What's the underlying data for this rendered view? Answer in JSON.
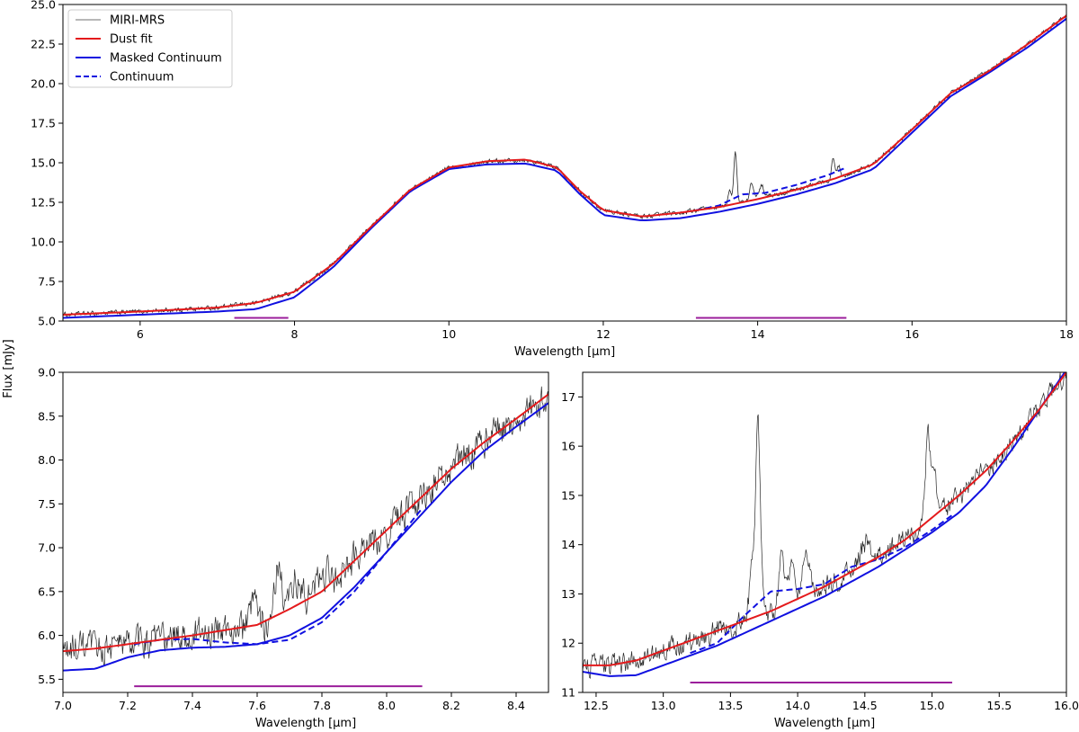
{
  "figure": {
    "ylabel": "Flux [mJy]",
    "legend": {
      "location": "top-left",
      "entries": [
        {
          "label": "MIRI-MRS",
          "color": "#a0a0a0",
          "style": "solid"
        },
        {
          "label": "Dust fit",
          "color": "#e41a1c",
          "style": "solid"
        },
        {
          "label": "Masked Continuum",
          "color": "#1010e0",
          "style": "solid"
        },
        {
          "label": "Continuum",
          "color": "#1010e0",
          "style": "dashed"
        }
      ]
    }
  },
  "colors": {
    "data": "#000000",
    "dust_fit": "#e41a1c",
    "masked_continuum": "#1010e0",
    "continuum": "#1010e0",
    "mask_bar": "#9b1e9b"
  },
  "chart_data": [
    {
      "id": "top",
      "type": "line",
      "xlabel": "Wavelength [µm]",
      "ylabel": "",
      "xlim": [
        5,
        18
      ],
      "ylim": [
        5.0,
        25.0
      ],
      "xticks": [
        6,
        8,
        10,
        12,
        14,
        16,
        18
      ],
      "xtick_labels": [
        "6",
        "8",
        "10",
        "12",
        "14",
        "16",
        "18"
      ],
      "yticks": [
        5.0,
        7.5,
        10.0,
        12.5,
        15.0,
        17.5,
        20.0,
        22.5,
        25.0
      ],
      "ytick_labels": [
        "5.0",
        "7.5",
        "10.0",
        "12.5",
        "15.0",
        "17.5",
        "20.0",
        "22.5",
        "25.0"
      ],
      "mask_ranges": [
        [
          7.22,
          7.92
        ],
        [
          13.2,
          15.15
        ]
      ],
      "mask_y": 5.2,
      "noise": 0.12,
      "emission_lines": [
        [
          13.71,
          3.2,
          0.02
        ],
        [
          13.64,
          1.0,
          0.02
        ],
        [
          13.92,
          1.2,
          0.025
        ],
        [
          14.05,
          0.8,
          0.03
        ],
        [
          14.98,
          1.4,
          0.02
        ],
        [
          15.05,
          0.7,
          0.02
        ]
      ],
      "series": [
        {
          "name": "Dust fit",
          "x": [
            5.0,
            6.0,
            7.0,
            7.5,
            8.0,
            8.5,
            9.0,
            9.5,
            10.0,
            10.5,
            11.0,
            11.4,
            11.7,
            12.0,
            12.5,
            13.0,
            13.5,
            14.0,
            14.5,
            15.0,
            15.5,
            16.0,
            16.5,
            17.0,
            17.5,
            18.0
          ],
          "values": [
            5.4,
            5.6,
            5.85,
            6.15,
            6.85,
            8.6,
            11.0,
            13.3,
            14.7,
            15.1,
            15.2,
            14.7,
            13.2,
            12.0,
            11.6,
            11.85,
            12.2,
            12.7,
            13.3,
            14.0,
            14.9,
            17.1,
            19.4,
            20.8,
            22.5,
            24.3
          ]
        },
        {
          "name": "Masked Continuum",
          "x": [
            5.0,
            6.0,
            7.0,
            7.5,
            8.0,
            8.5,
            9.0,
            9.5,
            10.0,
            10.5,
            11.0,
            11.4,
            11.7,
            12.0,
            12.5,
            13.0,
            13.5,
            14.0,
            14.5,
            15.0,
            15.5,
            16.0,
            16.5,
            17.0,
            17.5,
            18.0
          ],
          "values": [
            5.2,
            5.4,
            5.6,
            5.75,
            6.5,
            8.4,
            10.9,
            13.2,
            14.6,
            14.9,
            14.95,
            14.5,
            13.0,
            11.7,
            11.35,
            11.5,
            11.9,
            12.4,
            13.0,
            13.7,
            14.6,
            16.9,
            19.2,
            20.7,
            22.3,
            24.1
          ]
        },
        {
          "name": "Continuum",
          "x": [
            13.2,
            13.5,
            13.8,
            14.1,
            14.5,
            14.9,
            15.15
          ],
          "values": [
            12.0,
            12.3,
            13.0,
            13.1,
            13.6,
            14.2,
            14.7
          ]
        }
      ]
    },
    {
      "id": "bottom-left",
      "type": "line",
      "xlabel": "Wavelength [µm]",
      "ylabel": "",
      "xlim": [
        7.0,
        8.5
      ],
      "ylim": [
        5.35,
        9.0
      ],
      "xticks": [
        7.0,
        7.2,
        7.4,
        7.6,
        7.8,
        8.0,
        8.2,
        8.4
      ],
      "xtick_labels": [
        "7.0",
        "7.2",
        "7.4",
        "7.6",
        "7.8",
        "8.0",
        "8.2",
        "8.4"
      ],
      "yticks": [
        5.5,
        6.0,
        6.5,
        7.0,
        7.5,
        8.0,
        8.5,
        9.0
      ],
      "ytick_labels": [
        "5.5",
        "6.0",
        "6.5",
        "7.0",
        "7.5",
        "8.0",
        "8.5",
        "9.0"
      ],
      "mask_ranges": [
        [
          7.22,
          8.11
        ]
      ],
      "mask_y": 5.42,
      "noise": 0.16,
      "emission_lines": [
        [
          7.665,
          0.55,
          0.012
        ],
        [
          7.72,
          0.3,
          0.012
        ],
        [
          7.59,
          0.25,
          0.01
        ],
        [
          7.8,
          0.2,
          0.02
        ]
      ],
      "series": [
        {
          "name": "Dust fit",
          "x": [
            7.0,
            7.1,
            7.2,
            7.3,
            7.4,
            7.5,
            7.6,
            7.7,
            7.8,
            7.9,
            8.0,
            8.1,
            8.2,
            8.3,
            8.4,
            8.5
          ],
          "values": [
            5.82,
            5.85,
            5.9,
            5.95,
            6.0,
            6.06,
            6.12,
            6.3,
            6.5,
            6.85,
            7.2,
            7.55,
            7.9,
            8.2,
            8.47,
            8.75
          ]
        },
        {
          "name": "Masked Continuum",
          "x": [
            7.0,
            7.1,
            7.2,
            7.3,
            7.4,
            7.5,
            7.6,
            7.7,
            7.8,
            7.9,
            8.0,
            8.1,
            8.2,
            8.3,
            8.4,
            8.5
          ],
          "values": [
            5.6,
            5.62,
            5.75,
            5.83,
            5.86,
            5.87,
            5.9,
            6.0,
            6.2,
            6.55,
            6.95,
            7.35,
            7.75,
            8.1,
            8.38,
            8.65
          ]
        },
        {
          "name": "Continuum",
          "x": [
            7.22,
            7.3,
            7.4,
            7.5,
            7.6,
            7.7,
            7.8,
            7.9,
            8.0,
            8.11
          ],
          "values": [
            5.9,
            5.95,
            5.96,
            5.92,
            5.9,
            5.95,
            6.15,
            6.5,
            6.95,
            7.45
          ]
        }
      ]
    },
    {
      "id": "bottom-right",
      "type": "line",
      "xlabel": "Wavelength [µm]",
      "ylabel": "",
      "xlim": [
        12.4,
        16.0
      ],
      "ylim": [
        11.0,
        17.5
      ],
      "xticks": [
        12.5,
        13.0,
        13.5,
        14.0,
        14.5,
        15.0,
        15.5,
        16.0
      ],
      "xtick_labels": [
        "12.5",
        "13.0",
        "13.5",
        "14.0",
        "14.5",
        "15.0",
        "15.5",
        "16.0"
      ],
      "yticks": [
        11,
        12,
        13,
        14,
        15,
        16,
        17
      ],
      "ytick_labels": [
        "11",
        "12",
        "13",
        "14",
        "15",
        "16",
        "17"
      ],
      "mask_ranges": [
        [
          13.2,
          15.15
        ]
      ],
      "mask_y": 11.2,
      "noise": 0.18,
      "emission_lines": [
        [
          13.705,
          3.8,
          0.018
        ],
        [
          13.66,
          0.9,
          0.02
        ],
        [
          13.88,
          1.1,
          0.02
        ],
        [
          13.96,
          1.0,
          0.02
        ],
        [
          14.06,
          0.8,
          0.025
        ],
        [
          14.97,
          1.7,
          0.018
        ],
        [
          15.02,
          0.7,
          0.02
        ],
        [
          14.5,
          0.4,
          0.04
        ]
      ],
      "series": [
        {
          "name": "Dust fit",
          "x": [
            12.4,
            12.6,
            12.8,
            13.0,
            13.2,
            13.4,
            13.6,
            13.8,
            14.0,
            14.2,
            14.4,
            14.6,
            14.8,
            15.0,
            15.2,
            15.4,
            15.6,
            15.8,
            16.0
          ],
          "values": [
            11.55,
            11.55,
            11.65,
            11.85,
            12.05,
            12.25,
            12.45,
            12.65,
            12.9,
            13.15,
            13.45,
            13.75,
            14.1,
            14.55,
            15.0,
            15.5,
            16.1,
            16.75,
            17.5
          ]
        },
        {
          "name": "Masked Continuum",
          "x": [
            12.4,
            12.6,
            12.8,
            13.0,
            13.2,
            13.4,
            13.6,
            13.8,
            14.0,
            14.2,
            14.4,
            14.6,
            14.8,
            15.0,
            15.2,
            15.4,
            15.6,
            15.8,
            16.0
          ],
          "values": [
            11.42,
            11.33,
            11.35,
            11.55,
            11.75,
            11.95,
            12.2,
            12.45,
            12.7,
            12.95,
            13.25,
            13.55,
            13.9,
            14.25,
            14.65,
            15.2,
            15.95,
            16.75,
            17.55
          ]
        },
        {
          "name": "Continuum",
          "x": [
            13.2,
            13.4,
            13.6,
            13.8,
            14.0,
            14.2,
            14.4,
            14.6,
            14.8,
            15.0,
            15.15
          ],
          "values": [
            11.8,
            12.0,
            12.55,
            13.05,
            13.1,
            13.2,
            13.55,
            13.7,
            13.95,
            14.3,
            14.6
          ]
        }
      ]
    }
  ]
}
